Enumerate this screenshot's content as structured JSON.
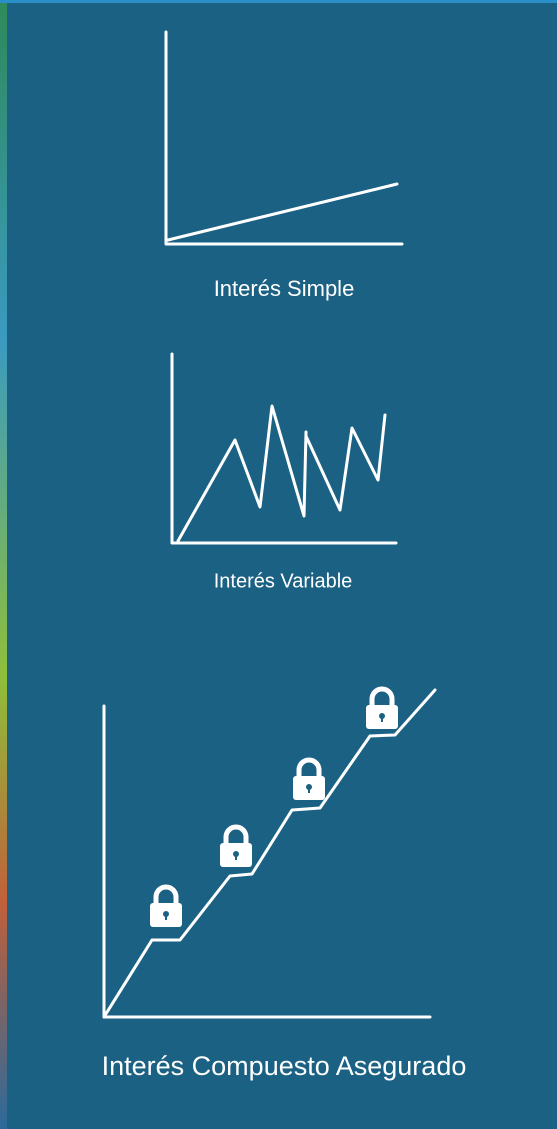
{
  "labels": {
    "simple": "Interés Simple",
    "variable": "Interés Variable",
    "compound": "Interés Compuesto Asegurado"
  }
}
